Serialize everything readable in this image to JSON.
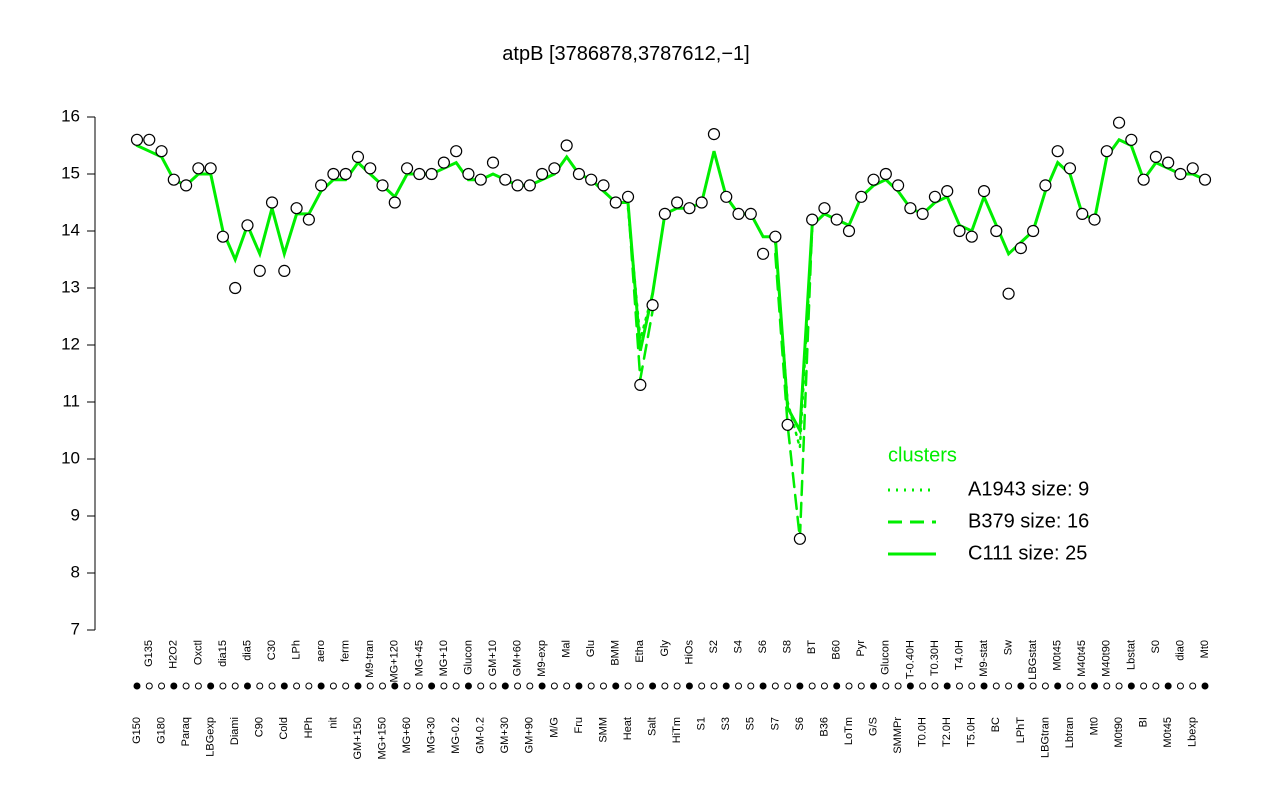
{
  "chart_data": {
    "type": "line",
    "title": "atpB [3786878,3787612,−1]",
    "legend_title": "clusters",
    "ylim": [
      7,
      16
    ],
    "yticks": [
      7,
      8,
      9,
      10,
      11,
      12,
      13,
      14,
      15,
      16
    ],
    "categories": [
      "G150",
      "G135",
      "G180",
      "H2O2",
      "Paraq",
      "Oxctl",
      "LBGexp",
      "dia15",
      "Diami",
      "dia5",
      "C90",
      "C30",
      "Cold",
      "LPh",
      "HPh",
      "aero",
      "nit",
      "ferm",
      "GM+150",
      "M9-tran",
      "MG+150",
      "MG+120",
      "MG+60",
      "MG+45",
      "MG+30",
      "MG+10",
      "MG-0.2",
      "Glucon",
      "GM-0.2",
      "GM+10",
      "GM+30",
      "GM+60",
      "GM+90",
      "M9-exp",
      "M/G",
      "Mal",
      "Fru",
      "Glu",
      "SMM",
      "BMM",
      "Heat",
      "Etha",
      "Salt",
      "Gly",
      "HiTm",
      "HiOs",
      "S1",
      "S2",
      "S3",
      "S4",
      "S5",
      "S6",
      "S7",
      "S8",
      "S6",
      "BT",
      "B36",
      "B60",
      "LoTm",
      "Pyr",
      "G/S",
      "Glucon",
      "SMMPr",
      "T-0.40H",
      "T0.0H",
      "T0.30H",
      "T2.0H",
      "T4.0H",
      "T5.0H",
      "M9-stat",
      "BC",
      "Sw",
      "LPhT",
      "LBGstat",
      "LBGtran",
      "M0t45",
      "Lbtran",
      "M40t45",
      "Mt0",
      "M40t90",
      "M0t90",
      "Lbstat",
      "BI",
      "S0",
      "M0t45",
      "dia0",
      "Lbexp",
      "Mt0"
    ],
    "points": {
      "color": "#000000",
      "fill": "#ffffff",
      "values": [
        15.6,
        15.6,
        15.4,
        14.9,
        14.8,
        15.1,
        15.1,
        13.9,
        13.0,
        14.1,
        13.3,
        14.5,
        13.3,
        14.4,
        14.2,
        14.8,
        15.0,
        15.0,
        15.3,
        15.1,
        14.8,
        14.5,
        15.1,
        15.0,
        15.0,
        15.2,
        15.4,
        15.0,
        14.9,
        15.2,
        14.9,
        14.8,
        14.8,
        15.0,
        15.1,
        15.5,
        15.0,
        14.9,
        14.8,
        14.5,
        14.6,
        11.3,
        12.7,
        14.3,
        14.5,
        14.4,
        14.5,
        15.7,
        14.6,
        14.3,
        14.3,
        13.6,
        13.9,
        10.6,
        8.6,
        14.2,
        14.4,
        14.2,
        14.0,
        14.6,
        14.9,
        15.0,
        14.8,
        14.4,
        14.3,
        14.6,
        14.7,
        14.0,
        13.9,
        14.7,
        14.0,
        12.9,
        13.7,
        14.0,
        14.8,
        15.4,
        15.1,
        14.3,
        14.2,
        15.4,
        15.9,
        15.6,
        14.9,
        15.3,
        15.2,
        15.0,
        15.1,
        14.9
      ]
    },
    "series": [
      {
        "name": "A1943 size: 9",
        "color": "#00ee00",
        "style": "dotted",
        "values": [
          null,
          null,
          null,
          null,
          null,
          null,
          null,
          null,
          null,
          null,
          null,
          null,
          null,
          null,
          null,
          null,
          null,
          null,
          null,
          null,
          null,
          null,
          null,
          null,
          null,
          null,
          null,
          null,
          null,
          null,
          null,
          null,
          null,
          null,
          null,
          null,
          null,
          null,
          null,
          null,
          14.4,
          12.1,
          12.9,
          null,
          null,
          null,
          null,
          null,
          null,
          null,
          null,
          null,
          13.8,
          11.0,
          10.2,
          14.0,
          null,
          null,
          null,
          null,
          null,
          null,
          null,
          null,
          null,
          null,
          null,
          null,
          null,
          null,
          null,
          null,
          null,
          null,
          null,
          null,
          null,
          null,
          null,
          null,
          null,
          null,
          null,
          null,
          null,
          null,
          null,
          null
        ]
      },
      {
        "name": "B379 size: 16",
        "color": "#00ee00",
        "style": "dashed",
        "values": [
          null,
          null,
          null,
          null,
          null,
          null,
          null,
          null,
          null,
          null,
          null,
          null,
          null,
          null,
          null,
          null,
          null,
          null,
          null,
          null,
          null,
          null,
          null,
          null,
          null,
          null,
          null,
          null,
          null,
          null,
          null,
          null,
          null,
          null,
          null,
          null,
          null,
          null,
          null,
          null,
          14.5,
          11.4,
          12.6,
          null,
          null,
          null,
          null,
          null,
          null,
          null,
          null,
          null,
          13.6,
          10.6,
          8.6,
          14.1,
          null,
          null,
          null,
          null,
          null,
          null,
          null,
          null,
          null,
          null,
          null,
          null,
          null,
          null,
          null,
          null,
          null,
          null,
          null,
          null,
          null,
          null,
          null,
          null,
          null,
          null,
          null,
          null,
          null,
          null,
          null,
          null
        ]
      },
      {
        "name": "C111 size: 25",
        "color": "#00ee00",
        "style": "solid",
        "values": [
          15.5,
          15.4,
          15.3,
          14.9,
          14.8,
          15.0,
          15.0,
          14.0,
          13.5,
          14.1,
          13.6,
          14.4,
          13.6,
          14.3,
          14.3,
          14.7,
          14.9,
          14.9,
          15.2,
          15.0,
          14.8,
          14.6,
          15.0,
          15.0,
          15.0,
          15.1,
          15.2,
          14.9,
          14.9,
          15.0,
          14.9,
          14.8,
          14.8,
          14.9,
          15.0,
          15.3,
          15.0,
          14.9,
          14.7,
          14.5,
          14.5,
          11.9,
          12.9,
          14.3,
          14.4,
          14.4,
          14.5,
          15.4,
          14.6,
          14.3,
          14.3,
          13.9,
          13.9,
          10.9,
          10.5,
          14.1,
          14.3,
          14.2,
          14.1,
          14.6,
          14.8,
          14.9,
          14.7,
          14.4,
          14.3,
          14.5,
          14.6,
          14.1,
          14.0,
          14.6,
          14.1,
          13.6,
          13.8,
          14.0,
          14.7,
          15.2,
          15.0,
          14.3,
          14.2,
          15.3,
          15.6,
          15.5,
          14.9,
          15.2,
          15.1,
          15.0,
          15.0,
          14.9
        ]
      }
    ]
  }
}
